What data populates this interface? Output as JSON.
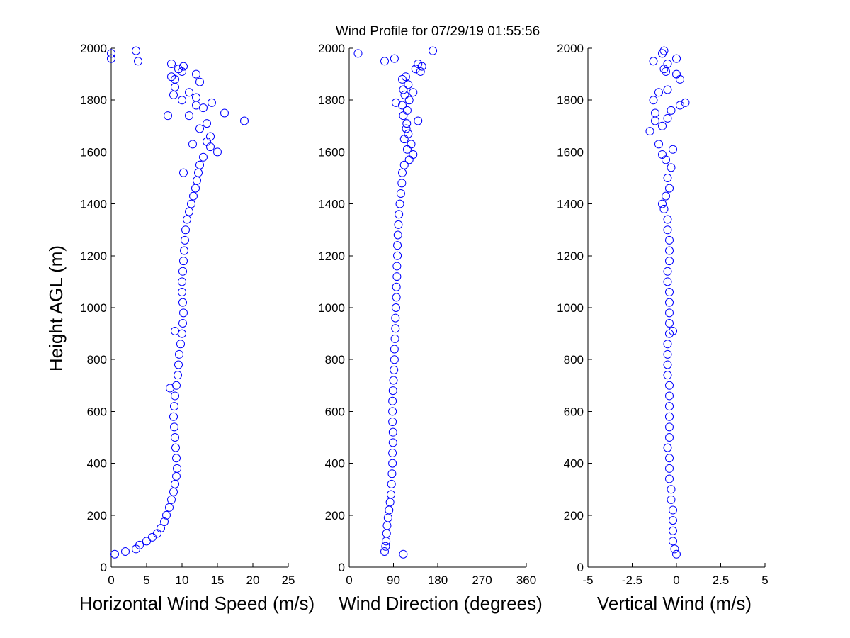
{
  "figure": {
    "title": "Wind Profile for  07/29/19 01:55:56",
    "ylabel": "Height AGL (m)",
    "colors": {
      "marker": "#0000ff",
      "axis": "#000000",
      "background": "#ffffff"
    }
  },
  "chart_data": [
    {
      "type": "scatter",
      "xlabel": "Horizontal Wind Speed (m/s)",
      "ylabel": "Height AGL (m)",
      "xlim": [
        0,
        25
      ],
      "ylim": [
        0,
        2000
      ],
      "xticks": [
        0,
        5,
        10,
        15,
        20,
        25
      ],
      "yticks": [
        0,
        200,
        400,
        600,
        800,
        1000,
        1200,
        1400,
        1600,
        1800,
        2000
      ],
      "grid": false,
      "marker": "circle-open",
      "points": [
        [
          0.5,
          50
        ],
        [
          2.0,
          60
        ],
        [
          3.5,
          70
        ],
        [
          4.0,
          85
        ],
        [
          5.0,
          100
        ],
        [
          5.8,
          115
        ],
        [
          6.5,
          130
        ],
        [
          7.0,
          150
        ],
        [
          7.5,
          175
        ],
        [
          7.8,
          200
        ],
        [
          8.2,
          230
        ],
        [
          8.5,
          260
        ],
        [
          8.8,
          290
        ],
        [
          9.0,
          320
        ],
        [
          9.2,
          350
        ],
        [
          9.3,
          380
        ],
        [
          9.2,
          420
        ],
        [
          9.1,
          460
        ],
        [
          9.0,
          500
        ],
        [
          8.9,
          540
        ],
        [
          8.8,
          580
        ],
        [
          8.9,
          620
        ],
        [
          9.0,
          660
        ],
        [
          9.2,
          700
        ],
        [
          9.4,
          740
        ],
        [
          9.5,
          780
        ],
        [
          9.6,
          820
        ],
        [
          9.8,
          860
        ],
        [
          10.0,
          900
        ],
        [
          10.1,
          940
        ],
        [
          10.2,
          980
        ],
        [
          10.1,
          1020
        ],
        [
          10.0,
          1060
        ],
        [
          10.0,
          1100
        ],
        [
          10.1,
          1140
        ],
        [
          10.2,
          1180
        ],
        [
          10.3,
          1220
        ],
        [
          10.4,
          1260
        ],
        [
          10.5,
          1300
        ],
        [
          10.7,
          1340
        ],
        [
          11.0,
          1370
        ],
        [
          11.3,
          1400
        ],
        [
          11.6,
          1430
        ],
        [
          11.9,
          1460
        ],
        [
          12.1,
          1490
        ],
        [
          12.3,
          1520
        ],
        [
          12.5,
          1550
        ],
        [
          13.0,
          1580
        ],
        [
          15.0,
          1600
        ],
        [
          14.0,
          1620
        ],
        [
          13.5,
          1640
        ],
        [
          14.0,
          1660
        ],
        [
          12.5,
          1690
        ],
        [
          13.5,
          1710
        ],
        [
          18.8,
          1720
        ],
        [
          11.0,
          1740
        ],
        [
          16.0,
          1750
        ],
        [
          13.0,
          1770
        ],
        [
          12.0,
          1780
        ],
        [
          14.2,
          1790
        ],
        [
          10.0,
          1800
        ],
        [
          12.0,
          1810
        ],
        [
          8.8,
          1820
        ],
        [
          11.0,
          1830
        ],
        [
          9.0,
          1850
        ],
        [
          12.5,
          1870
        ],
        [
          9.0,
          1880
        ],
        [
          8.5,
          1890
        ],
        [
          12.0,
          1900
        ],
        [
          10.0,
          1910
        ],
        [
          9.5,
          1920
        ],
        [
          10.2,
          1930
        ],
        [
          8.5,
          1940
        ],
        [
          3.8,
          1950
        ],
        [
          0.0,
          1960
        ],
        [
          0.0,
          1980
        ],
        [
          3.5,
          1990
        ],
        [
          8.0,
          1740
        ],
        [
          11.5,
          1630
        ],
        [
          10.2,
          1520
        ],
        [
          9.0,
          910
        ],
        [
          8.3,
          690
        ]
      ]
    },
    {
      "type": "scatter",
      "xlabel": "Wind Direction (degrees)",
      "xlim": [
        0,
        360
      ],
      "ylim": [
        0,
        2000
      ],
      "xticks": [
        0,
        90,
        180,
        270,
        360
      ],
      "yticks": [
        0,
        200,
        400,
        600,
        800,
        1000,
        1200,
        1400,
        1600,
        1800,
        2000
      ],
      "grid": false,
      "marker": "circle-open",
      "points": [
        [
          72,
          60
        ],
        [
          74,
          80
        ],
        [
          75,
          100
        ],
        [
          76,
          130
        ],
        [
          77,
          160
        ],
        [
          79,
          190
        ],
        [
          81,
          220
        ],
        [
          83,
          250
        ],
        [
          85,
          280
        ],
        [
          86,
          320
        ],
        [
          87,
          360
        ],
        [
          88,
          400
        ],
        [
          88,
          440
        ],
        [
          89,
          480
        ],
        [
          89,
          520
        ],
        [
          88,
          560
        ],
        [
          88,
          600
        ],
        [
          88,
          640
        ],
        [
          89,
          680
        ],
        [
          90,
          720
        ],
        [
          91,
          760
        ],
        [
          92,
          800
        ],
        [
          92,
          840
        ],
        [
          93,
          880
        ],
        [
          94,
          920
        ],
        [
          94,
          960
        ],
        [
          95,
          1000
        ],
        [
          96,
          1040
        ],
        [
          96,
          1080
        ],
        [
          97,
          1120
        ],
        [
          97,
          1160
        ],
        [
          98,
          1200
        ],
        [
          98,
          1240
        ],
        [
          99,
          1280
        ],
        [
          100,
          1320
        ],
        [
          101,
          1360
        ],
        [
          103,
          1400
        ],
        [
          105,
          1440
        ],
        [
          107,
          1480
        ],
        [
          108,
          1520
        ],
        [
          112,
          1550
        ],
        [
          122,
          1570
        ],
        [
          130,
          1590
        ],
        [
          118,
          1610
        ],
        [
          126,
          1630
        ],
        [
          112,
          1650
        ],
        [
          120,
          1670
        ],
        [
          116,
          1690
        ],
        [
          117,
          1710
        ],
        [
          140,
          1720
        ],
        [
          110,
          1740
        ],
        [
          118,
          1760
        ],
        [
          108,
          1780
        ],
        [
          95,
          1790
        ],
        [
          122,
          1800
        ],
        [
          113,
          1820
        ],
        [
          130,
          1830
        ],
        [
          110,
          1840
        ],
        [
          120,
          1860
        ],
        [
          108,
          1880
        ],
        [
          115,
          1890
        ],
        [
          145,
          1910
        ],
        [
          135,
          1920
        ],
        [
          148,
          1930
        ],
        [
          140,
          1940
        ],
        [
          72,
          1950
        ],
        [
          92,
          1960
        ],
        [
          18,
          1980
        ],
        [
          170,
          1990
        ],
        [
          110,
          50
        ]
      ]
    },
    {
      "type": "scatter",
      "xlabel": "Vertical Wind (m/s)",
      "xlim": [
        -5,
        5
      ],
      "ylim": [
        0,
        2000
      ],
      "xticks": [
        -5,
        -2.5,
        0,
        2.5,
        5
      ],
      "xtick_labels": [
        "-5",
        "-2.5",
        "0",
        "2.5",
        "5"
      ],
      "yticks": [
        0,
        200,
        400,
        600,
        800,
        1000,
        1200,
        1400,
        1600,
        1800,
        2000
      ],
      "grid": false,
      "marker": "circle-open",
      "points": [
        [
          0.0,
          50
        ],
        [
          -0.1,
          70
        ],
        [
          -0.2,
          100
        ],
        [
          -0.2,
          140
        ],
        [
          -0.2,
          180
        ],
        [
          -0.2,
          220
        ],
        [
          -0.3,
          260
        ],
        [
          -0.3,
          300
        ],
        [
          -0.4,
          340
        ],
        [
          -0.4,
          380
        ],
        [
          -0.4,
          420
        ],
        [
          -0.5,
          460
        ],
        [
          -0.4,
          500
        ],
        [
          -0.4,
          540
        ],
        [
          -0.4,
          580
        ],
        [
          -0.4,
          620
        ],
        [
          -0.4,
          660
        ],
        [
          -0.4,
          700
        ],
        [
          -0.5,
          740
        ],
        [
          -0.5,
          780
        ],
        [
          -0.5,
          820
        ],
        [
          -0.5,
          860
        ],
        [
          -0.4,
          900
        ],
        [
          -0.4,
          940
        ],
        [
          -0.4,
          980
        ],
        [
          -0.4,
          1020
        ],
        [
          -0.4,
          1060
        ],
        [
          -0.5,
          1100
        ],
        [
          -0.5,
          1140
        ],
        [
          -0.4,
          1180
        ],
        [
          -0.4,
          1220
        ],
        [
          -0.4,
          1260
        ],
        [
          -0.5,
          1300
        ],
        [
          -0.5,
          1340
        ],
        [
          -0.7,
          1380
        ],
        [
          -0.8,
          1400
        ],
        [
          -0.6,
          1430
        ],
        [
          -0.4,
          1460
        ],
        [
          -0.5,
          1500
        ],
        [
          -0.3,
          1540
        ],
        [
          -0.6,
          1570
        ],
        [
          -0.8,
          1590
        ],
        [
          -0.2,
          1610
        ],
        [
          -1.0,
          1630
        ],
        [
          -1.5,
          1680
        ],
        [
          -0.8,
          1700
        ],
        [
          -1.2,
          1720
        ],
        [
          -0.5,
          1730
        ],
        [
          -1.2,
          1750
        ],
        [
          -0.3,
          1760
        ],
        [
          0.2,
          1780
        ],
        [
          0.5,
          1790
        ],
        [
          -1.3,
          1800
        ],
        [
          -1.0,
          1830
        ],
        [
          -0.5,
          1840
        ],
        [
          0.2,
          1880
        ],
        [
          0.0,
          1900
        ],
        [
          -0.6,
          1910
        ],
        [
          -0.7,
          1920
        ],
        [
          -0.5,
          1940
        ],
        [
          -1.3,
          1950
        ],
        [
          0.0,
          1960
        ],
        [
          -0.8,
          1980
        ],
        [
          -0.7,
          1990
        ],
        [
          -0.2,
          910
        ]
      ]
    }
  ]
}
